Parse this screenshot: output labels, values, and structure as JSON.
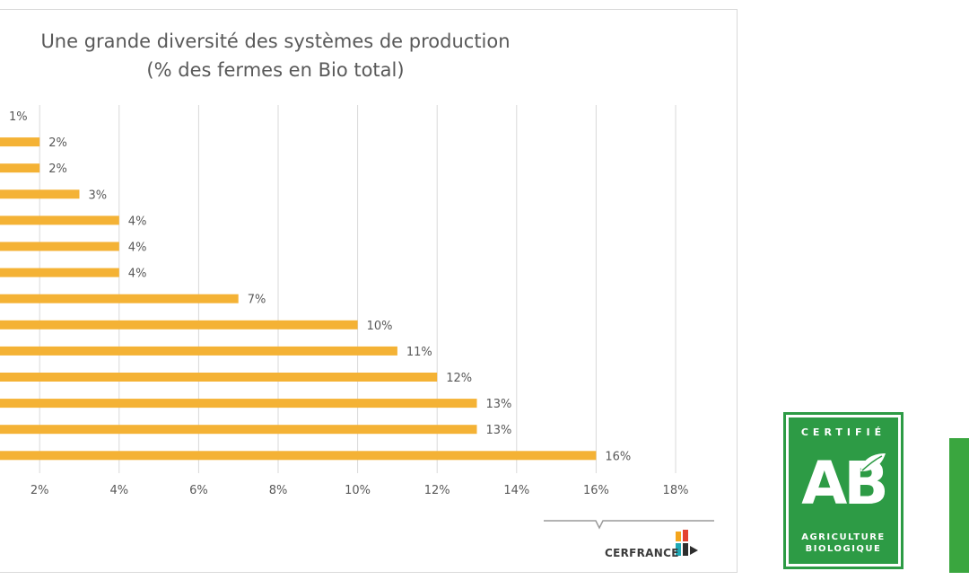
{
  "chart_data": {
    "type": "bar",
    "orientation": "horizontal",
    "title_line1": "Une grande diversité des systèmes de production",
    "title_line2": "(% des fermes en Bio total)",
    "values": [
      1,
      2,
      2,
      3,
      4,
      4,
      4,
      7,
      10,
      11,
      12,
      13,
      13,
      16
    ],
    "value_labels": [
      "1%",
      "2%",
      "2%",
      "3%",
      "4%",
      "4%",
      "4%",
      "7%",
      "10%",
      "11%",
      "12%",
      "13%",
      "13%",
      "16%"
    ],
    "x_ticks": [
      2,
      4,
      6,
      8,
      10,
      12,
      14,
      16,
      18
    ],
    "x_tick_labels": [
      "2%",
      "4%",
      "6%",
      "8%",
      "10%",
      "12%",
      "14%",
      "16%",
      "18%"
    ],
    "xlim": [
      0,
      18
    ],
    "grid": true,
    "bar_color": "#F4B235"
  },
  "logos": {
    "cerfrance": "CERFRANCE",
    "ab_top": "CERTIFIÉ",
    "ab_letters": "AB",
    "ab_bottom_1": "AGRICULTURE",
    "ab_bottom_2": "BIOLOGIQUE"
  },
  "colors": {
    "ab_green": "#2D9B45",
    "gridline": "#D9D9D9",
    "text": "#595959"
  }
}
